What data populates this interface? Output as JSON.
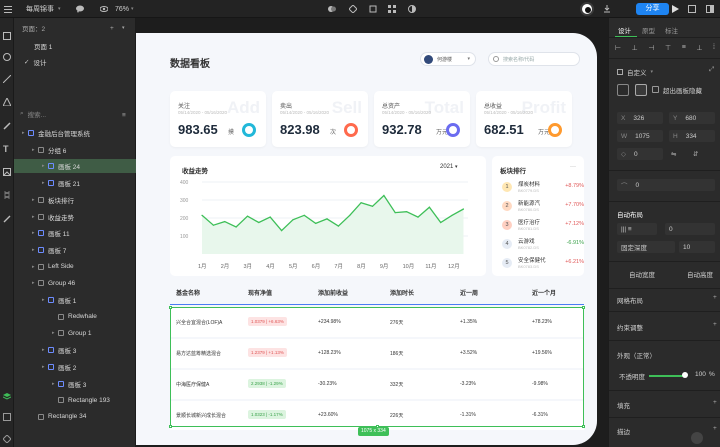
{
  "toolbar": {
    "menu_label": "每周锦事",
    "zoom": "76%",
    "share_label": "分享"
  },
  "layers": {
    "pages_title": "页面：2",
    "pages": [
      "页面 1",
      "设计"
    ],
    "search_placeholder": "搜索...",
    "tree": [
      {
        "label": "金融后台管理系统",
        "indent": 0,
        "type": "frame"
      },
      {
        "label": "分组 6",
        "indent": 1,
        "type": "folder"
      },
      {
        "label": "画板 24",
        "indent": 2,
        "type": "frame",
        "selected": true
      },
      {
        "label": "画板 21",
        "indent": 2,
        "type": "frame"
      },
      {
        "label": "板块排行",
        "indent": 1,
        "type": "folder"
      },
      {
        "label": "收益走势",
        "indent": 1,
        "type": "folder"
      },
      {
        "label": "画板 11",
        "indent": 1,
        "type": "frame"
      },
      {
        "label": "画板 7",
        "indent": 1,
        "type": "frame"
      },
      {
        "label": "Left Side",
        "indent": 1,
        "type": "folder"
      },
      {
        "label": "Group 46",
        "indent": 1,
        "type": "folder"
      },
      {
        "label": "画板 1",
        "indent": 2,
        "type": "frame"
      },
      {
        "label": "Redwhale",
        "indent": 3,
        "type": "shape"
      },
      {
        "label": "Group 1",
        "indent": 3,
        "type": "folder"
      },
      {
        "label": "画板 3",
        "indent": 2,
        "type": "frame"
      },
      {
        "label": "画板 2",
        "indent": 2,
        "type": "frame"
      },
      {
        "label": "画板 3",
        "indent": 3,
        "type": "frame"
      },
      {
        "label": "Rectangle 193",
        "indent": 3,
        "type": "shape"
      },
      {
        "label": "Rectangle 34",
        "indent": 1,
        "type": "shape"
      }
    ]
  },
  "dashboard": {
    "title": "数据看板",
    "user_name": "何游楼",
    "search_placeholder": "搜索名称/代码",
    "cards": [
      {
        "title": "关注",
        "date": "05/14/2020 - 05/16/2020",
        "value": "983.65",
        "unit": "摸",
        "watermark": "Add",
        "color": "#22b8d9"
      },
      {
        "title": "卖出",
        "date": "05/14/2020 - 05/16/2020",
        "value": "823.98",
        "unit": "次",
        "watermark": "Sell",
        "color": "#ff6a4d"
      },
      {
        "title": "总资产",
        "date": "05/14/2020 - 05/16/2020",
        "value": "932.78",
        "unit": "万元",
        "watermark": "Total",
        "color": "#6b6cf0"
      },
      {
        "title": "总收益",
        "date": "05/14/2020 - 05/16/2020",
        "value": "682.51",
        "unit": "万元",
        "watermark": "Profit",
        "color": "#ff9a2e"
      }
    ],
    "trend_title": "收益走势",
    "year": "2021",
    "ranking_title": "板块排行",
    "ranking_more": "···",
    "ranking": [
      {
        "num": "1",
        "name": "煤炭材料",
        "code": "BK0779.DS",
        "pct": "+8.79%",
        "up": true
      },
      {
        "num": "2",
        "name": "新能源汽",
        "code": "BK0780.DS",
        "pct": "+7.70%",
        "up": true
      },
      {
        "num": "3",
        "name": "医疗治疗",
        "code": "BK0781.DS",
        "pct": "+7.12%",
        "up": true
      },
      {
        "num": "4",
        "name": "云游戏",
        "code": "BK0782.DS",
        "pct": "-6.91%",
        "up": false
      },
      {
        "num": "5",
        "name": "安全保健代",
        "code": "BK0783.DS",
        "pct": "+6.21%",
        "up": true
      }
    ],
    "table": {
      "headers": [
        "基金名称",
        "现有净值",
        "添加前收益",
        "添加时长",
        "近一周",
        "近一个月"
      ],
      "rows": [
        {
          "name": "兴全合宜混合(LOF)A",
          "nav": "1.0379 | +6.63%",
          "nav_tag": "r",
          "gain": "+234.98%",
          "dur": "276天",
          "week": "+1.35%",
          "month": "+78.23%"
        },
        {
          "name": "易方达蓝筹精选混合",
          "nav": "1.2379 | +1.13%",
          "nav_tag": "r",
          "gain": "+128.23%",
          "dur": "186天",
          "week": "+3.52%",
          "month": "+19.56%"
        },
        {
          "name": "中海医疗保健A",
          "nav": "2.2938 | -1.29%",
          "nav_tag": "g",
          "gain": "-30.23%",
          "dur": "332天",
          "week": "-3.23%",
          "month": "-9.98%"
        },
        {
          "name": "景顺长城新兴成长混合",
          "nav": "1.0323 | -1.17%",
          "nav_tag": "g",
          "gain": "+23.60%",
          "dur": "226天",
          "week": "-1.31%",
          "month": "-6.31%"
        }
      ]
    },
    "selection_size": "1075 x 334"
  },
  "chart_data": {
    "type": "line",
    "title": "收益走势",
    "categories": [
      "1月",
      "2月",
      "3月",
      "4月",
      "5月",
      "6月",
      "7月",
      "8月",
      "9月",
      "10月",
      "11月",
      "12月"
    ],
    "x": [
      1,
      1.5,
      2,
      2.5,
      3,
      3.5,
      4,
      4.5,
      5,
      5.5,
      6,
      6.5,
      7,
      7.5,
      8,
      8.5,
      9,
      9.5,
      10,
      10.5,
      11,
      11.5,
      12,
      12.5
    ],
    "values": [
      215,
      160,
      180,
      150,
      210,
      175,
      205,
      130,
      190,
      215,
      170,
      195,
      155,
      215,
      285,
      265,
      325,
      230,
      235,
      205,
      260,
      175,
      215,
      250
    ],
    "yticks": [
      "400",
      "300",
      "200",
      "100"
    ],
    "ylim": [
      0,
      400
    ],
    "grid": true
  },
  "props": {
    "tabs": [
      "设计",
      "原型",
      "标注"
    ],
    "preset": "自定义",
    "clip_label": "超出画板隐藏",
    "x": "326",
    "y": "680",
    "w": "1075",
    "h": "334",
    "rot": "0",
    "radius": "0",
    "layout_title": "自动布局",
    "gap_label": "固定深度",
    "gap": "10",
    "auto_w": "自动宽度",
    "auto_h": "自动高度",
    "grid_label": "网格布局",
    "constraint_label": "约束调整",
    "appearance_label": "外观（正常）",
    "opacity_label": "不透明度",
    "opacity": "100",
    "opacity_unit": "%",
    "fill_label": "填充",
    "stroke_label": "描边"
  }
}
